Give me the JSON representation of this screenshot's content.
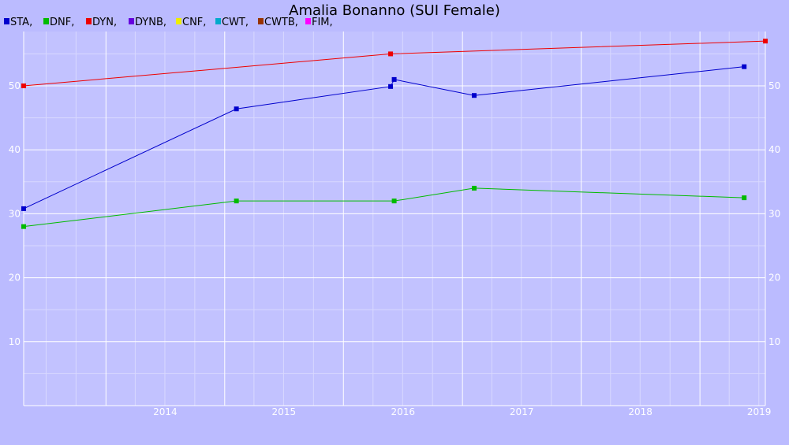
{
  "chart_data": {
    "type": "line",
    "title": "Amalia Bonanno (SUI Female)",
    "xlabel": "",
    "ylabel": "",
    "xlim": [
      "2013-04-23",
      "2019-07-21"
    ],
    "ylim": [
      0,
      58.5
    ],
    "x_ticks": [
      "2014",
      "2015",
      "2016",
      "2017",
      "2018",
      "2019"
    ],
    "y_ticks": [
      10,
      20,
      30,
      40,
      50
    ],
    "grid": true,
    "legend_position": "top-left",
    "legend": [
      {
        "name": "STA,",
        "color": "#0000cc"
      },
      {
        "name": "DNF,",
        "color": "#00bb00"
      },
      {
        "name": "DYN,",
        "color": "#ee0000"
      },
      {
        "name": "DYNB,",
        "color": "#6600dd"
      },
      {
        "name": "CNF,",
        "color": "#eeee00"
      },
      {
        "name": "CWT,",
        "color": "#00aacc"
      },
      {
        "name": "CWTB,",
        "color": "#993300"
      },
      {
        "name": "FIM,",
        "color": "#ff00ff"
      }
    ],
    "series": [
      {
        "name": "STA,",
        "color": "#0000cc",
        "points": [
          {
            "x": "2013-04-23",
            "y": 30.8
          },
          {
            "x": "2015-02-06",
            "y": 46.4
          },
          {
            "x": "2016-05-25",
            "y": 49.9
          },
          {
            "x": "2016-06-05",
            "y": 51.0
          },
          {
            "x": "2017-02-06",
            "y": 48.5
          },
          {
            "x": "2019-05-17",
            "y": 53.0
          }
        ]
      },
      {
        "name": "DNF,",
        "color": "#00bb00",
        "points": [
          {
            "x": "2013-04-23",
            "y": 28.0
          },
          {
            "x": "2015-02-06",
            "y": 32.0
          },
          {
            "x": "2016-06-05",
            "y": 32.0
          },
          {
            "x": "2017-02-06",
            "y": 34.0
          },
          {
            "x": "2019-05-17",
            "y": 32.5
          }
        ]
      },
      {
        "name": "DYN,",
        "color": "#ee0000",
        "points": [
          {
            "x": "2013-04-23",
            "y": 50.0
          },
          {
            "x": "2016-05-25",
            "y": 55.0
          },
          {
            "x": "2019-07-21",
            "y": 57.0
          }
        ]
      }
    ]
  }
}
